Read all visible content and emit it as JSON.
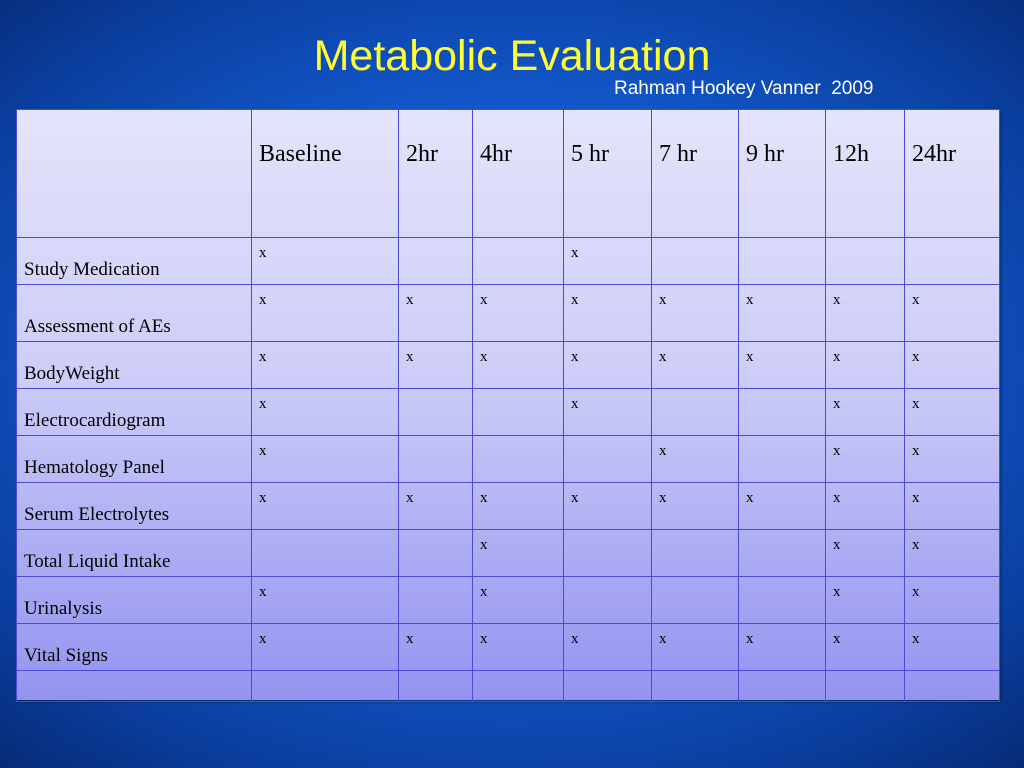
{
  "slide": {
    "title": "Metabolic Evaluation",
    "subtitle": "Rahman Hookey Vanner  2009",
    "title_color": "#ffff33",
    "background_color": "#135bd0"
  },
  "table": {
    "corner": "",
    "columns": [
      "Baseline",
      "2hr",
      "4hr",
      "5 hr",
      "7 hr",
      "9 hr",
      "12h",
      "24hr"
    ],
    "rows": [
      {
        "label": "Study Medication",
        "cells": [
          "x",
          "",
          "",
          "x",
          "",
          "",
          "",
          ""
        ]
      },
      {
        "label": "Assessment of AEs",
        "cells": [
          "x",
          "x",
          "x",
          "x",
          "x",
          "x",
          "x",
          "x"
        ]
      },
      {
        "label": "BodyWeight",
        "cells": [
          "x",
          "x",
          "x",
          "x",
          "x",
          "x",
          "x",
          "x"
        ]
      },
      {
        "label": "Electrocardiogram",
        "cells": [
          "x",
          "",
          "",
          "x",
          "",
          "",
          "x",
          "x"
        ]
      },
      {
        "label": "Hematology Panel",
        "cells": [
          "x",
          "",
          "",
          "",
          "x",
          "",
          "x",
          "x"
        ]
      },
      {
        "label": "Serum Electrolytes",
        "cells": [
          "x",
          "x",
          "x",
          "x",
          "x",
          "x",
          "x",
          "x"
        ]
      },
      {
        "label": "Total Liquid Intake",
        "cells": [
          "",
          "",
          "x",
          "",
          "",
          "",
          "x",
          "x"
        ]
      },
      {
        "label": "Urinalysis",
        "cells": [
          "x",
          "",
          "x",
          "",
          "",
          "",
          "x",
          "x"
        ]
      },
      {
        "label": "Vital Signs",
        "cells": [
          "x",
          "x",
          "x",
          "x",
          "x",
          "x",
          "x",
          "x"
        ]
      }
    ]
  }
}
